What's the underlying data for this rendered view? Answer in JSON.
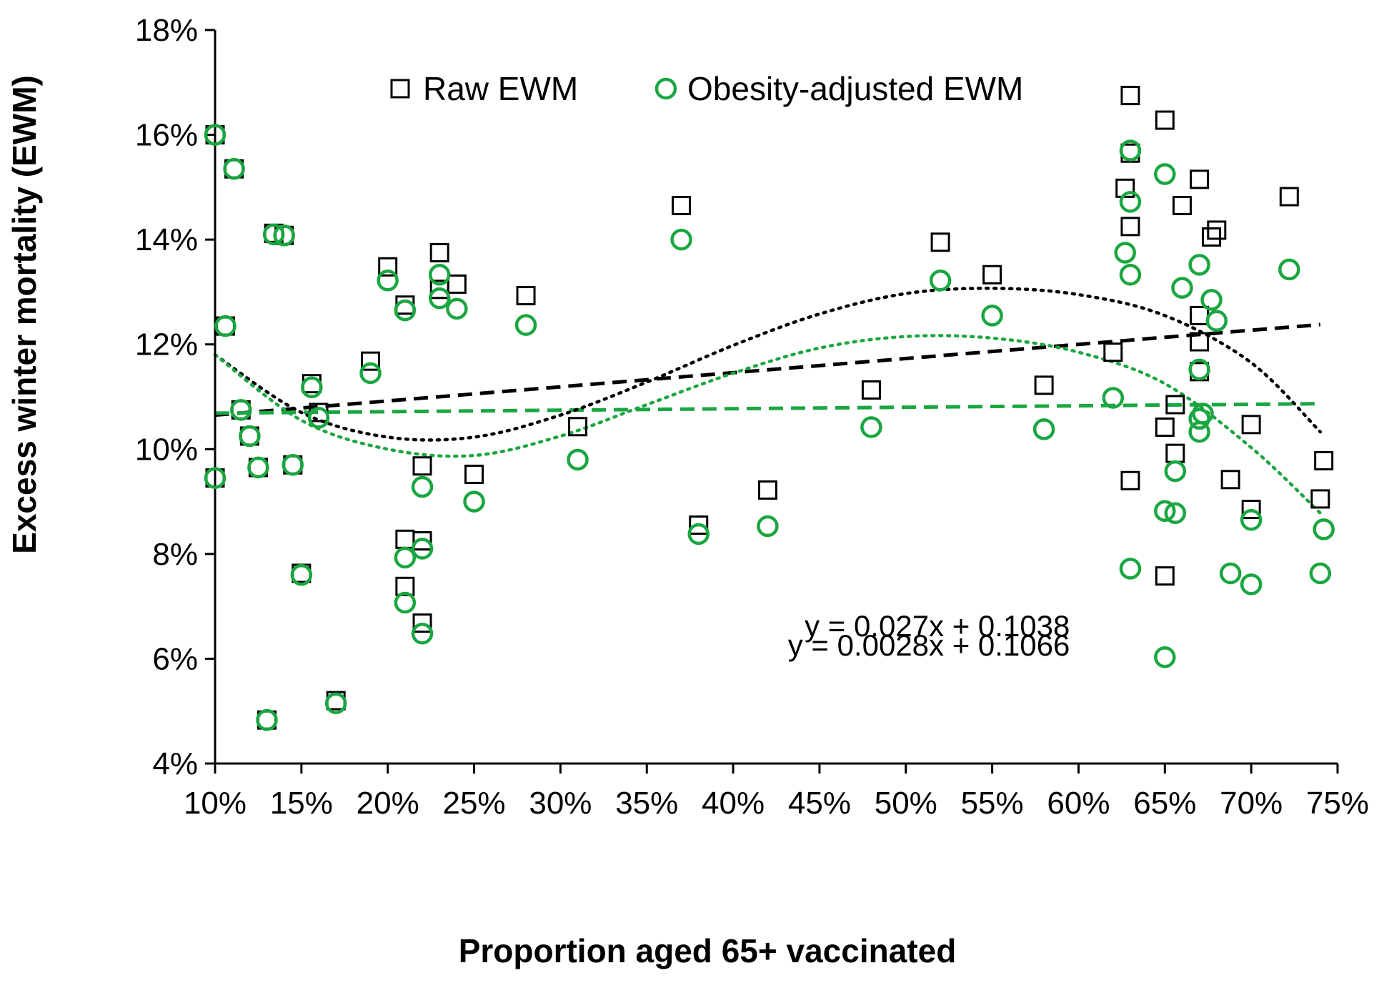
{
  "chart_data": {
    "type": "scatter",
    "title": "",
    "xlabel": "Proportion aged 65+ vaccinated",
    "ylabel": "Excess winter mortality (EWM)",
    "xlim": [
      0.1,
      0.75
    ],
    "ylim": [
      0.04,
      0.18
    ],
    "x_ticks": [
      0.1,
      0.15,
      0.2,
      0.25,
      0.3,
      0.35,
      0.4,
      0.45,
      0.5,
      0.55,
      0.6,
      0.65,
      0.7,
      0.75
    ],
    "x_tick_labels": [
      "10%",
      "15%",
      "20%",
      "25%",
      "30%",
      "35%",
      "40%",
      "45%",
      "50%",
      "55%",
      "60%",
      "65%",
      "70%",
      "75%"
    ],
    "y_ticks": [
      0.04,
      0.06,
      0.08,
      0.1,
      0.12,
      0.14,
      0.16,
      0.18
    ],
    "y_tick_labels": [
      "4%",
      "6%",
      "8%",
      "10%",
      "12%",
      "14%",
      "16%",
      "18%"
    ],
    "grid": false,
    "legend_position": "top-center",
    "series": [
      {
        "name": "Raw EWM",
        "marker": "square",
        "color": "#000000",
        "points": [
          [
            0.1,
            0.16
          ],
          [
            0.111,
            0.1535
          ],
          [
            0.106,
            0.1235
          ],
          [
            0.1,
            0.0945
          ],
          [
            0.115,
            0.1075
          ],
          [
            0.12,
            0.1025
          ],
          [
            0.125,
            0.0965
          ],
          [
            0.134,
            0.1412
          ],
          [
            0.14,
            0.1408
          ],
          [
            0.145,
            0.097
          ],
          [
            0.15,
            0.0763
          ],
          [
            0.156,
            0.1125
          ],
          [
            0.16,
            0.107
          ],
          [
            0.13,
            0.0483
          ],
          [
            0.17,
            0.052
          ],
          [
            0.19,
            0.1168
          ],
          [
            0.2,
            0.1348
          ],
          [
            0.21,
            0.1275
          ],
          [
            0.21,
            0.0828
          ],
          [
            0.21,
            0.0738
          ],
          [
            0.22,
            0.0968
          ],
          [
            0.22,
            0.0825
          ],
          [
            0.22,
            0.0668
          ],
          [
            0.23,
            0.1375
          ],
          [
            0.23,
            0.1305
          ],
          [
            0.24,
            0.1315
          ],
          [
            0.25,
            0.0952
          ],
          [
            0.28,
            0.1293
          ],
          [
            0.31,
            0.1043
          ],
          [
            0.37,
            0.1465
          ],
          [
            0.38,
            0.0855
          ],
          [
            0.42,
            0.0922
          ],
          [
            0.48,
            0.1113
          ],
          [
            0.52,
            0.1395
          ],
          [
            0.55,
            0.1333
          ],
          [
            0.58,
            0.1122
          ],
          [
            0.62,
            0.1185
          ],
          [
            0.627,
            0.1498
          ],
          [
            0.63,
            0.1675
          ],
          [
            0.63,
            0.1565
          ],
          [
            0.63,
            0.1425
          ],
          [
            0.63,
            0.094
          ],
          [
            0.65,
            0.1628
          ],
          [
            0.65,
            0.1042
          ],
          [
            0.65,
            0.0758
          ],
          [
            0.656,
            0.0992
          ],
          [
            0.656,
            0.1085
          ],
          [
            0.66,
            0.1465
          ],
          [
            0.67,
            0.1515
          ],
          [
            0.67,
            0.1255
          ],
          [
            0.67,
            0.1205
          ],
          [
            0.67,
            0.1148
          ],
          [
            0.677,
            0.1405
          ],
          [
            0.68,
            0.1418
          ],
          [
            0.688,
            0.0942
          ],
          [
            0.7,
            0.1047
          ],
          [
            0.7,
            0.0885
          ],
          [
            0.722,
            0.1482
          ],
          [
            0.74,
            0.0905
          ],
          [
            0.742,
            0.0978
          ]
        ]
      },
      {
        "name": "Obesity-adjusted EWM",
        "marker": "circle",
        "color": "#1aa640",
        "points": [
          [
            0.1,
            0.16
          ],
          [
            0.111,
            0.1535
          ],
          [
            0.106,
            0.1235
          ],
          [
            0.1,
            0.0945
          ],
          [
            0.115,
            0.1075
          ],
          [
            0.12,
            0.1025
          ],
          [
            0.125,
            0.0965
          ],
          [
            0.134,
            0.141
          ],
          [
            0.14,
            0.1408
          ],
          [
            0.145,
            0.097
          ],
          [
            0.15,
            0.076
          ],
          [
            0.156,
            0.1118
          ],
          [
            0.16,
            0.106
          ],
          [
            0.13,
            0.0483
          ],
          [
            0.17,
            0.0515
          ],
          [
            0.19,
            0.1145
          ],
          [
            0.2,
            0.1322
          ],
          [
            0.21,
            0.1265
          ],
          [
            0.21,
            0.0793
          ],
          [
            0.21,
            0.0707
          ],
          [
            0.22,
            0.0928
          ],
          [
            0.22,
            0.081
          ],
          [
            0.22,
            0.0648
          ],
          [
            0.23,
            0.1333
          ],
          [
            0.23,
            0.1288
          ],
          [
            0.24,
            0.1268
          ],
          [
            0.25,
            0.09
          ],
          [
            0.28,
            0.1237
          ],
          [
            0.31,
            0.098
          ],
          [
            0.37,
            0.14
          ],
          [
            0.38,
            0.0838
          ],
          [
            0.42,
            0.0853
          ],
          [
            0.48,
            0.1042
          ],
          [
            0.52,
            0.1322
          ],
          [
            0.55,
            0.1255
          ],
          [
            0.58,
            0.1038
          ],
          [
            0.62,
            0.1098
          ],
          [
            0.627,
            0.1375
          ],
          [
            0.63,
            0.157
          ],
          [
            0.63,
            0.1472
          ],
          [
            0.63,
            0.1333
          ],
          [
            0.63,
            0.0772
          ],
          [
            0.65,
            0.1525
          ],
          [
            0.65,
            0.0882
          ],
          [
            0.65,
            0.0603
          ],
          [
            0.656,
            0.0958
          ],
          [
            0.656,
            0.0878
          ],
          [
            0.66,
            0.1308
          ],
          [
            0.67,
            0.1352
          ],
          [
            0.67,
            0.1152
          ],
          [
            0.67,
            0.1058
          ],
          [
            0.67,
            0.1033
          ],
          [
            0.672,
            0.1068
          ],
          [
            0.677,
            0.1285
          ],
          [
            0.68,
            0.1245
          ],
          [
            0.688,
            0.0763
          ],
          [
            0.7,
            0.0865
          ],
          [
            0.7,
            0.0742
          ],
          [
            0.722,
            0.1343
          ],
          [
            0.74,
            0.0763
          ],
          [
            0.742,
            0.0847
          ]
        ]
      }
    ],
    "trendlines": [
      {
        "series": "Raw EWM",
        "type": "linear",
        "style": "dashed",
        "color": "#000000",
        "slope": 0.027,
        "intercept": 0.1038
      },
      {
        "series": "Obesity-adjusted EWM",
        "type": "linear",
        "style": "dashed",
        "color": "#1aa640",
        "slope": 0.0028,
        "intercept": 0.1066
      },
      {
        "series": "Raw EWM",
        "type": "polynomial",
        "style": "dotted",
        "color": "#000000",
        "x": [
          0.1,
          0.15,
          0.2,
          0.25,
          0.3,
          0.35,
          0.4,
          0.45,
          0.5,
          0.55,
          0.6,
          0.65,
          0.7,
          0.74
        ],
        "y": [
          0.118,
          0.107,
          0.1023,
          0.1023,
          0.1065,
          0.1128,
          0.1198,
          0.1258,
          0.1297,
          0.1307,
          0.1295,
          0.1255,
          0.1165,
          0.1033
        ]
      },
      {
        "series": "Obesity-adjusted EWM",
        "type": "polynomial",
        "style": "dotted",
        "color": "#1aa640",
        "x": [
          0.1,
          0.15,
          0.2,
          0.25,
          0.3,
          0.35,
          0.4,
          0.45,
          0.5,
          0.55,
          0.6,
          0.65,
          0.7,
          0.74
        ],
        "y": [
          0.118,
          0.1055,
          0.1,
          0.0988,
          0.1025,
          0.1085,
          0.1145,
          0.1193,
          0.1215,
          0.1212,
          0.1185,
          0.1125,
          0.1003,
          0.0878
        ]
      }
    ],
    "annotations": [
      {
        "text": "y = 0.027x + 0.1038",
        "x": 0.595,
        "y": 0.0643
      },
      {
        "text": "y = 0.0028x + 0.1066",
        "x": 0.595,
        "y": 0.0606
      }
    ]
  }
}
